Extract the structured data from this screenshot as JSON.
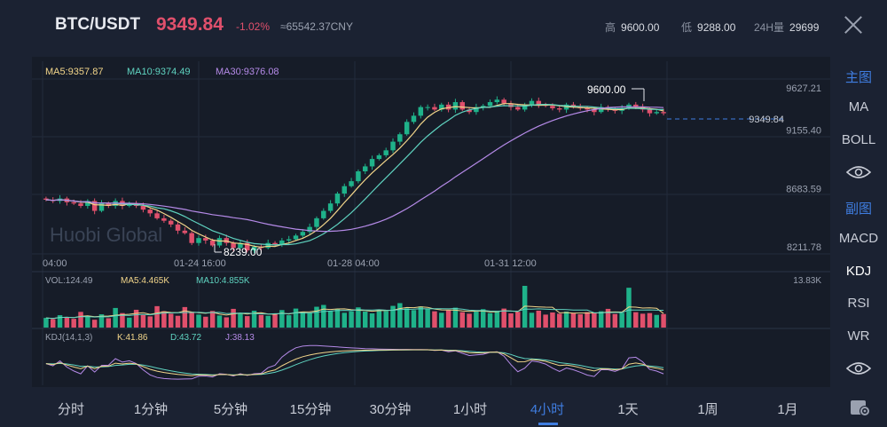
{
  "header": {
    "pair": "BTC/USDT",
    "price": "9349.84",
    "change": "-1.02%",
    "cny": "≈65542.37CNY",
    "high_label": "高",
    "high_value": "9600.00",
    "low_label": "低",
    "low_value": "9288.00",
    "vol_label": "24H量",
    "vol_value": "29699"
  },
  "main_indicators": {
    "ma5": "MA5:9357.87",
    "ma10": "MA10:9374.49",
    "ma30": "MA30:9376.08"
  },
  "price_axis": [
    "9627.21",
    "9155.40",
    "8683.59",
    "8211.78"
  ],
  "current_price_tag": "9349.84",
  "annotations": {
    "high": "9600.00",
    "low": "8239.00"
  },
  "watermark": "Huobi Global",
  "time_axis": [
    "04:00",
    "01-24 16:00",
    "01-28 04:00",
    "01-31 12:00"
  ],
  "volume": {
    "vol": "VOL:124.49",
    "ma5": "MA5:4.465K",
    "ma10": "MA10:4.855K",
    "max": "13.83K"
  },
  "kdj": {
    "label": "KDJ(14,1,3)",
    "k": "K:41.86",
    "d": "D:43.72",
    "j": "J:38.13"
  },
  "right_panel": {
    "main_label": "主图",
    "main_items": [
      "MA",
      "BOLL"
    ],
    "sub_label": "副图",
    "sub_items": [
      "MACD",
      "KDJ",
      "RSI",
      "WR"
    ]
  },
  "timeframes": [
    "分时",
    "1分钟",
    "5分钟",
    "15分钟",
    "30分钟",
    "1小时",
    "4小时",
    "1天",
    "1周",
    "1月"
  ],
  "active_timeframe": "4小时",
  "colors": {
    "up": "#1fb28a",
    "down": "#e0506c",
    "ma5": "#f2d58a",
    "ma10": "#5fd3c0",
    "ma30": "#b58ae8",
    "accent": "#3f7de0"
  },
  "chart_data": {
    "type": "candlestick",
    "price_range": [
      8211.78,
      9627.21
    ],
    "close_series": [
      8650,
      8640,
      8660,
      8630,
      8620,
      8600,
      8640,
      8560,
      8620,
      8600,
      8640,
      8600,
      8620,
      8600,
      8570,
      8540,
      8500,
      8480,
      8450,
      8400,
      8380,
      8300,
      8340,
      8320,
      8280,
      8340,
      8300,
      8260,
      8300,
      8240,
      8270,
      8260,
      8300,
      8290,
      8320,
      8330,
      8360,
      8390,
      8430,
      8500,
      8560,
      8620,
      8700,
      8760,
      8800,
      8880,
      8920,
      8980,
      9010,
      9050,
      9120,
      9180,
      9280,
      9330,
      9400,
      9400,
      9380,
      9420,
      9380,
      9440,
      9380,
      9360,
      9400,
      9410,
      9440,
      9460,
      9430,
      9400,
      9380,
      9420,
      9450,
      9420,
      9410,
      9390,
      9380,
      9420,
      9400,
      9390,
      9380,
      9360,
      9400,
      9380,
      9370,
      9390,
      9420,
      9400,
      9380,
      9350,
      9360,
      9349.84
    ],
    "volume_bars": [
      3.2,
      2.8,
      4.1,
      3.5,
      2.9,
      5.2,
      3.8,
      2.6,
      4.4,
      3.1,
      6.5,
      4.8,
      3.3,
      5.9,
      4.2,
      3.7,
      7.1,
      5.4,
      4.6,
      3.9,
      6.8,
      5.1,
      4.3,
      3.6,
      5.5,
      4.0,
      3.4,
      6.2,
      4.9,
      3.8,
      5.6,
      4.2,
      3.9,
      4.5,
      5.8,
      4.1,
      6.3,
      5.2,
      4.8,
      6.9,
      7.5,
      5.6,
      6.1,
      4.9,
      5.4,
      6.7,
      5.3,
      4.7,
      6.0,
      5.5,
      7.2,
      8.1,
      6.4,
      5.8,
      7.0,
      6.2,
      5.4,
      4.9,
      5.7,
      6.6,
      5.1,
      4.6,
      5.3,
      6.1,
      4.8,
      5.5,
      6.3,
      4.7,
      5.2,
      13.83,
      4.9,
      5.6,
      4.3,
      5.0,
      4.6,
      5.3,
      4.8,
      4.4,
      5.1,
      4.7,
      5.4,
      6.2,
      4.5,
      4.9,
      13.2,
      5.1,
      4.6,
      4.8,
      4.2,
      4.5
    ]
  }
}
